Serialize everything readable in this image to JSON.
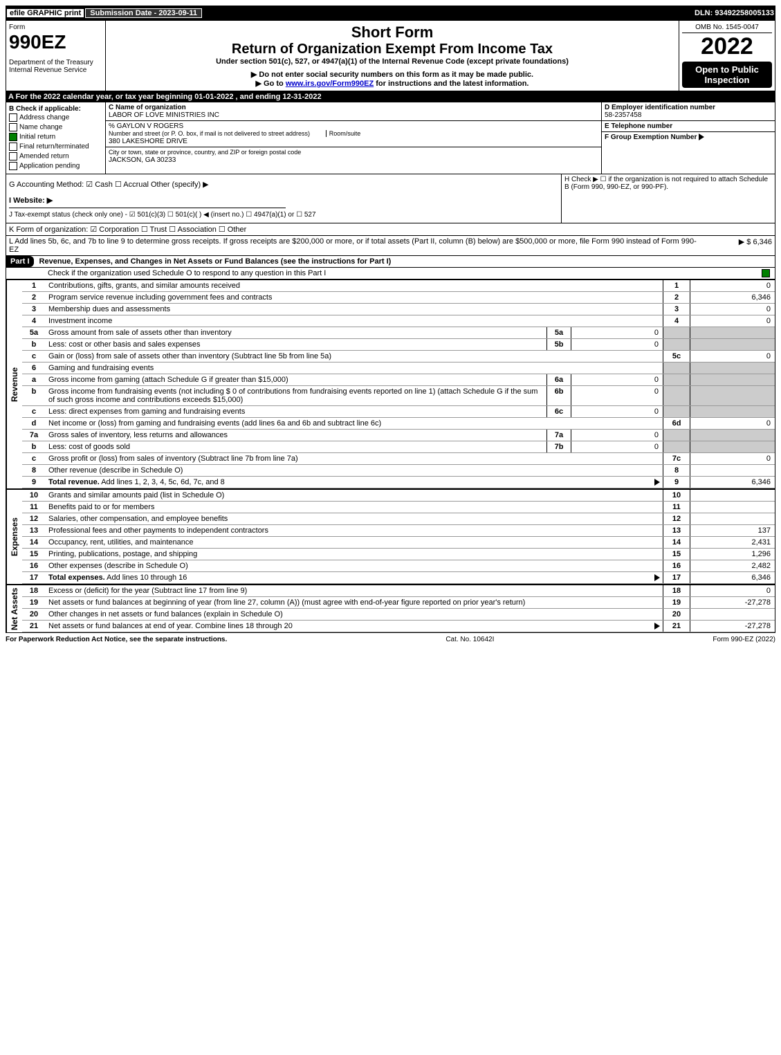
{
  "top": {
    "efile": "efile GRAPHIC print",
    "submission": "Submission Date - 2023-09-11",
    "dln": "DLN: 93492258005133"
  },
  "header": {
    "form_word": "Form",
    "form_number": "990EZ",
    "dept": "Department of the Treasury",
    "irs": "Internal Revenue Service",
    "short_form": "Short Form",
    "title": "Return of Organization Exempt From Income Tax",
    "subtitle": "Under section 501(c), 527, or 4947(a)(1) of the Internal Revenue Code (except private foundations)",
    "note1": "▶ Do not enter social security numbers on this form as it may be made public.",
    "note2": "▶ Go to ",
    "note2_link": "www.irs.gov/Form990EZ",
    "note2_tail": " for instructions and the latest information.",
    "omb": "OMB No. 1545-0047",
    "year": "2022",
    "open": "Open to Public Inspection"
  },
  "sectionA": "A  For the 2022 calendar year, or tax year beginning 01-01-2022 , and ending 12-31-2022",
  "boxB": {
    "header": "B Check if applicable:",
    "items": [
      "Address change",
      "Name change",
      "Initial return",
      "Final return/terminated",
      "Amended return",
      "Application pending"
    ],
    "checked_index": 2
  },
  "boxC": {
    "label_name": "C Name of organization",
    "org_name": "LABOR OF LOVE MINISTRIES INC",
    "care_of": "% GAYLON V ROGERS",
    "street_label": "Number and street (or P. O. box, if mail is not delivered to street address)",
    "room_label": "Room/suite",
    "street": "380 LAKESHORE DRIVE",
    "city_label": "City or town, state or province, country, and ZIP or foreign postal code",
    "city": "JACKSON, GA  30233"
  },
  "boxD": {
    "label": "D Employer identification number",
    "value": "58-2357458"
  },
  "boxE": {
    "label": "E Telephone number",
    "value": ""
  },
  "boxF": {
    "label": "F Group Exemption Number",
    "arrow": "▶"
  },
  "lineG": "G Accounting Method:   ☑ Cash  ☐ Accrual  Other (specify) ▶",
  "lineH": "H   Check ▶  ☐  if the organization is not required to attach Schedule B (Form 990, 990-EZ, or 990-PF).",
  "lineI": "I Website: ▶",
  "lineJ": "J Tax-exempt status (check only one) - ☑ 501(c)(3) ☐ 501(c)(  ) ◀ (insert no.) ☐ 4947(a)(1) or ☐ 527",
  "lineK": "K Form of organization:  ☑ Corporation  ☐ Trust  ☐ Association  ☐ Other",
  "lineL": {
    "text": "L Add lines 5b, 6c, and 7b to line 9 to determine gross receipts. If gross receipts are $200,000 or more, or if total assets (Part II, column (B) below) are $500,000 or more, file Form 990 instead of Form 990-EZ",
    "value": "▶ $ 6,346"
  },
  "part1": {
    "label": "Part I",
    "title": "Revenue, Expenses, and Changes in Net Assets or Fund Balances (see the instructions for Part I)",
    "check_line": "Check if the organization used Schedule O to respond to any question in this Part I",
    "checked": true
  },
  "sections": {
    "revenue": {
      "label": "Revenue",
      "lines": [
        {
          "num": "1",
          "text": "Contributions, gifts, grants, and similar amounts received",
          "rnum": "1",
          "rval": "0"
        },
        {
          "num": "2",
          "text": "Program service revenue including government fees and contracts",
          "rnum": "2",
          "rval": "6,346"
        },
        {
          "num": "3",
          "text": "Membership dues and assessments",
          "rnum": "3",
          "rval": "0"
        },
        {
          "num": "4",
          "text": "Investment income",
          "rnum": "4",
          "rval": "0"
        },
        {
          "num": "5a",
          "text": "Gross amount from sale of assets other than inventory",
          "sub": "5a",
          "subval": "0",
          "shaded": true
        },
        {
          "num": "b",
          "text": "Less: cost or other basis and sales expenses",
          "sub": "5b",
          "subval": "0",
          "shaded": true
        },
        {
          "num": "c",
          "text": "Gain or (loss) from sale of assets other than inventory (Subtract line 5b from line 5a)",
          "rnum": "5c",
          "rval": "0"
        },
        {
          "num": "6",
          "text": "Gaming and fundraising events",
          "shaded": true,
          "noval": true
        },
        {
          "num": "a",
          "text": "Gross income from gaming (attach Schedule G if greater than $15,000)",
          "sub": "6a",
          "subval": "0",
          "shaded": true
        },
        {
          "num": "b",
          "text": "Gross income from fundraising events (not including $ 0 of contributions from fundraising events reported on line 1) (attach Schedule G if the sum of such gross income and contributions exceeds $15,000)",
          "sub": "6b",
          "subval": "0",
          "shaded": true
        },
        {
          "num": "c",
          "text": "Less: direct expenses from gaming and fundraising events",
          "sub": "6c",
          "subval": "0",
          "shaded": true
        },
        {
          "num": "d",
          "text": "Net income or (loss) from gaming and fundraising events (add lines 6a and 6b and subtract line 6c)",
          "rnum": "6d",
          "rval": "0"
        },
        {
          "num": "7a",
          "text": "Gross sales of inventory, less returns and allowances",
          "sub": "7a",
          "subval": "0",
          "shaded": true
        },
        {
          "num": "b",
          "text": "Less: cost of goods sold",
          "sub": "7b",
          "subval": "0",
          "shaded": true
        },
        {
          "num": "c",
          "text": "Gross profit or (loss) from sales of inventory (Subtract line 7b from line 7a)",
          "rnum": "7c",
          "rval": "0"
        },
        {
          "num": "8",
          "text": "Other revenue (describe in Schedule O)",
          "rnum": "8",
          "rval": ""
        },
        {
          "num": "9",
          "text": "Total revenue. Add lines 1, 2, 3, 4, 5c, 6d, 7c, and 8",
          "rnum": "9",
          "rval": "6,346",
          "bold": true,
          "arrow": true
        }
      ]
    },
    "expenses": {
      "label": "Expenses",
      "lines": [
        {
          "num": "10",
          "text": "Grants and similar amounts paid (list in Schedule O)",
          "rnum": "10",
          "rval": ""
        },
        {
          "num": "11",
          "text": "Benefits paid to or for members",
          "rnum": "11",
          "rval": ""
        },
        {
          "num": "12",
          "text": "Salaries, other compensation, and employee benefits",
          "rnum": "12",
          "rval": ""
        },
        {
          "num": "13",
          "text": "Professional fees and other payments to independent contractors",
          "rnum": "13",
          "rval": "137"
        },
        {
          "num": "14",
          "text": "Occupancy, rent, utilities, and maintenance",
          "rnum": "14",
          "rval": "2,431"
        },
        {
          "num": "15",
          "text": "Printing, publications, postage, and shipping",
          "rnum": "15",
          "rval": "1,296"
        },
        {
          "num": "16",
          "text": "Other expenses (describe in Schedule O)",
          "rnum": "16",
          "rval": "2,482"
        },
        {
          "num": "17",
          "text": "Total expenses. Add lines 10 through 16",
          "rnum": "17",
          "rval": "6,346",
          "bold": true,
          "arrow": true
        }
      ]
    },
    "netassets": {
      "label": "Net Assets",
      "lines": [
        {
          "num": "18",
          "text": "Excess or (deficit) for the year (Subtract line 17 from line 9)",
          "rnum": "18",
          "rval": "0"
        },
        {
          "num": "19",
          "text": "Net assets or fund balances at beginning of year (from line 27, column (A)) (must agree with end-of-year figure reported on prior year's return)",
          "rnum": "19",
          "rval": "-27,278"
        },
        {
          "num": "20",
          "text": "Other changes in net assets or fund balances (explain in Schedule O)",
          "rnum": "20",
          "rval": ""
        },
        {
          "num": "21",
          "text": "Net assets or fund balances at end of year. Combine lines 18 through 20",
          "rnum": "21",
          "rval": "-27,278",
          "arrow": true
        }
      ]
    }
  },
  "footer": {
    "left": "For Paperwork Reduction Act Notice, see the separate instructions.",
    "center": "Cat. No. 10642I",
    "right": "Form 990-EZ (2022)"
  }
}
